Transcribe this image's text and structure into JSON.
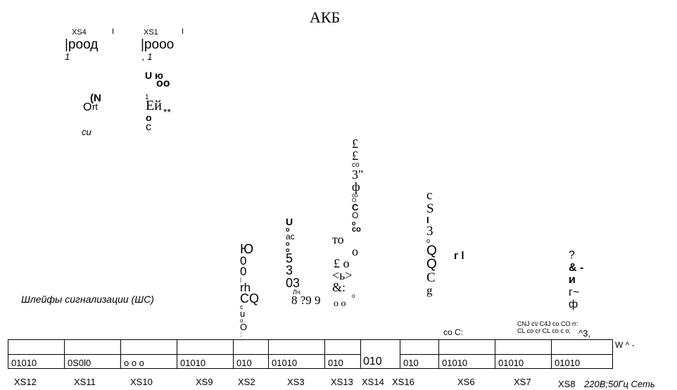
{
  "title": "АКБ",
  "top_left": {
    "xs4_label": "XS4",
    "xs4_bar": "I",
    "xs4_text": "|роод",
    "xs4_sub": "1",
    "xs1_label": "XS1",
    "xs1_bar": "I",
    "xs1_text": "|рooo",
    "xs1_sub": ", 1",
    "glyph_ujo": "U ю",
    "glyph_oo": "oo",
    "glyph_ort_o": "O",
    "glyph_ort_n": "(N",
    "glyph_ort_rt": "rt",
    "glyph_1": "1",
    "glyph_ei": "Ей",
    "glyph_stars": "**",
    "glyph_o": "o",
    "glyph_c": "c",
    "glyph_ci": "си"
  },
  "loop_caption": "Шлейфы сигнализации (ШС)",
  "col_xs2": [
    "Ю",
    "0",
    "0",
    "|",
    "rh",
    "CQ",
    "c",
    "u",
    "o",
    "O",
    ":"
  ],
  "col_xs3": [
    "U",
    "o",
    "ac",
    "o",
    "o",
    "5",
    "3",
    "03",
    "Лч",
    "8 ?9 9"
  ],
  "col_xs13": [
    "£",
    "£",
    "co",
    "3\"",
    "ф",
    "co",
    "O",
    "C",
    "O",
    "o",
    "co",
    "то",
    "o",
    "£  o",
    "<ь>",
    "&:",
    "o",
    "o  o"
  ],
  "col_xs16": [
    "c",
    "S",
    "I",
    "3",
    "o",
    "Q",
    "Q",
    "C",
    "g"
  ],
  "gamma_l": "г l",
  "co_c": "co C:",
  "col_xs8": [
    "?",
    "& -",
    "и",
    "г~",
    "ф"
  ],
  "small_labels": [
    "CNJ c\\i C4J co CO rr:",
    "CL co cr CL co c o;",
    "^3,"
  ],
  "w_label": "W ^ -",
  "terminals_bottom": [
    "01010",
    "0S0l0",
    "o  o  o",
    "01010",
    "010",
    "01010",
    "010",
    "010",
    "010",
    "01010",
    "01010",
    "01010"
  ],
  "terminal_xs14_top": "010",
  "connectors": [
    "XS12",
    "XS11",
    "XS10",
    "XS9",
    "XS2",
    "XS3",
    "XS13",
    "XS14",
    "XS16",
    "XS6",
    "XS7",
    "XS8"
  ],
  "xs8_note": "220В;50Гц Сеть"
}
